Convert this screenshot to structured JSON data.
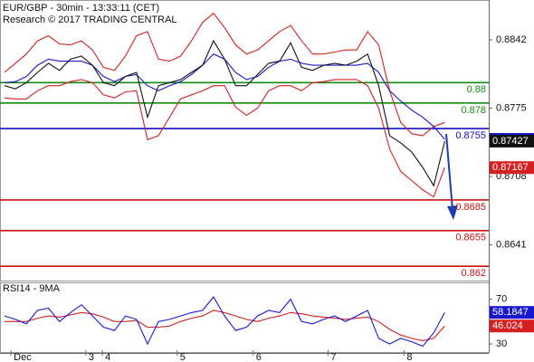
{
  "chart_data": [
    {
      "type": "line",
      "title": "EUR/GBP - 30min - 13:33:11 (CET)",
      "subtitle": "Research © 2017 TRADING CENTRAL",
      "xlim": [
        -0.4,
        44
      ],
      "ylim": [
        0.8606,
        0.8881
      ],
      "yticks": [
        0.8842,
        0.8775,
        0.8708,
        0.8641
      ],
      "levels": [
        {
          "value": 0.88,
          "color": "#138a13"
        },
        {
          "value": 0.878,
          "color": "#138a13"
        },
        {
          "value": 0.8755,
          "color": "#1010c0"
        },
        {
          "value": 0.8685,
          "color": "#d01010"
        },
        {
          "value": 0.8655,
          "color": "#d01010"
        },
        {
          "value": 0.862,
          "color": "#d01010"
        }
      ],
      "series": [
        {
          "color": "#d42020",
          "values": [
            0.881,
            0.8819,
            0.8828,
            0.8841,
            0.8846,
            0.8838,
            0.8837,
            0.8841,
            0.8832,
            0.8815,
            0.8812,
            0.8826,
            0.8846,
            0.885,
            0.8823,
            0.8821,
            0.8826,
            0.8841,
            0.8859,
            0.8868,
            0.8854,
            0.8837,
            0.8828,
            0.8832,
            0.8841,
            0.885,
            0.8856,
            0.8841,
            0.8828,
            0.8828,
            0.883,
            0.8832,
            0.8832,
            0.885,
            0.8837,
            0.8792,
            0.8761,
            0.875,
            0.8748,
            0.8757,
            0.8761
          ]
        },
        {
          "color": "#d42020",
          "last_tag": true,
          "values": [
            0.8785,
            0.8784,
            0.8784,
            0.8792,
            0.8797,
            0.8797,
            0.8801,
            0.8803,
            0.88,
            0.8788,
            0.8785,
            0.8791,
            0.8792,
            0.8744,
            0.8748,
            0.8766,
            0.8784,
            0.8788,
            0.8792,
            0.8797,
            0.8797,
            0.8776,
            0.8768,
            0.8775,
            0.8792,
            0.8797,
            0.8797,
            0.8792,
            0.88,
            0.8801,
            0.8803,
            0.8803,
            0.8803,
            0.8797,
            0.8775,
            0.8735,
            0.8713,
            0.8704,
            0.8695,
            0.8688,
            0.87167
          ]
        },
        {
          "color": "#1818d0",
          "last_tag": true,
          "values": [
            0.88,
            0.8801,
            0.8806,
            0.8817,
            0.8823,
            0.8821,
            0.8821,
            0.8821,
            0.8817,
            0.8806,
            0.8801,
            0.8806,
            0.8808,
            0.8797,
            0.8792,
            0.8797,
            0.8801,
            0.8808,
            0.8817,
            0.8828,
            0.8823,
            0.881,
            0.8803,
            0.8806,
            0.8815,
            0.8821,
            0.8823,
            0.8819,
            0.8817,
            0.8817,
            0.8817,
            0.8817,
            0.8817,
            0.8819,
            0.881,
            0.8792,
            0.8782,
            0.8773,
            0.8766,
            0.8757,
            0.87444
          ]
        },
        {
          "color": "#111111",
          "last_tag": true,
          "values": [
            0.8797,
            0.8794,
            0.88,
            0.881,
            0.8819,
            0.8812,
            0.8823,
            0.8826,
            0.8817,
            0.88,
            0.8797,
            0.8806,
            0.881,
            0.8766,
            0.8797,
            0.88,
            0.8803,
            0.881,
            0.8817,
            0.8841,
            0.8823,
            0.8797,
            0.8797,
            0.8808,
            0.8819,
            0.8821,
            0.8839,
            0.8815,
            0.8812,
            0.8817,
            0.8819,
            0.8817,
            0.8821,
            0.8828,
            0.8797,
            0.8748,
            0.8741,
            0.8732,
            0.8717,
            0.8699,
            0.87427
          ]
        }
      ]
    },
    {
      "type": "line",
      "title": "RSI14 - 9MA",
      "xlim": [
        -0.4,
        44
      ],
      "ylim": [
        22,
        85
      ],
      "yticks": [
        70,
        30
      ],
      "xticks": [
        {
          "value": 0.6,
          "label": "Dec"
        },
        {
          "value": 7.4,
          "label": "3"
        },
        {
          "value": 8.9,
          "label": "4"
        },
        {
          "value": 15.7,
          "label": "5"
        },
        {
          "value": 22.6,
          "label": "6"
        },
        {
          "value": 29.4,
          "label": "7"
        },
        {
          "value": 36.3,
          "label": "8"
        }
      ],
      "series": [
        {
          "color": "#d42020",
          "last_tag": true,
          "values": [
            50,
            50,
            50,
            53,
            55,
            54,
            56,
            58,
            57,
            54,
            50,
            50,
            51,
            45,
            45,
            46,
            50,
            53,
            55,
            60,
            58,
            55,
            52,
            50,
            53,
            55,
            58,
            57,
            55,
            54,
            53,
            52,
            53,
            54,
            50,
            43,
            38,
            35,
            33,
            35,
            46.024
          ]
        },
        {
          "color": "#1818d0",
          "last_tag": true,
          "values": [
            55,
            52,
            48,
            60,
            62,
            50,
            58,
            65,
            55,
            45,
            42,
            55,
            52,
            30,
            50,
            52,
            55,
            58,
            60,
            72,
            55,
            42,
            45,
            55,
            60,
            58,
            70,
            50,
            48,
            52,
            55,
            50,
            55,
            60,
            35,
            30,
            35,
            32,
            28,
            40,
            58.1847
          ]
        }
      ]
    }
  ]
}
